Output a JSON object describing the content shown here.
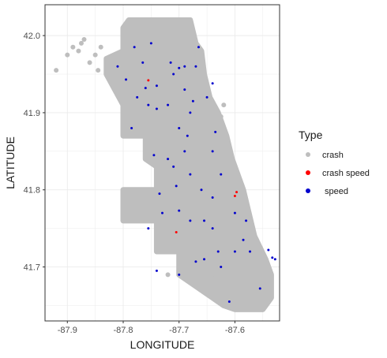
{
  "chart_data": {
    "type": "scatter",
    "xlabel": "LONGITUDE",
    "ylabel": "LATITUDE",
    "xlim": [
      -87.94,
      -87.52
    ],
    "ylim": [
      41.63,
      42.04
    ],
    "x_ticks": [
      "-87.9",
      "-87.8",
      "-87.7",
      "-87.6"
    ],
    "x_tick_values": [
      -87.9,
      -87.8,
      -87.7,
      -87.6
    ],
    "y_ticks": [
      "41.7",
      "41.8",
      "41.9",
      "42.0"
    ],
    "y_tick_values": [
      41.7,
      41.8,
      41.9,
      42.0
    ],
    "grid": true,
    "legend": {
      "title": "Type",
      "position": "right",
      "entries": [
        {
          "label": "crash",
          "color": "#bebebe"
        },
        {
          "label": "crash speed",
          "color": "#ff0000"
        },
        {
          "label": " speed",
          "color": "#0000cd"
        }
      ]
    },
    "crash_region": [
      [
        -87.79,
        42.02
      ],
      [
        -87.68,
        42.02
      ],
      [
        -87.67,
        41.99
      ],
      [
        -87.66,
        41.98
      ],
      [
        -87.655,
        41.95
      ],
      [
        -87.645,
        41.92
      ],
      [
        -87.63,
        41.9
      ],
      [
        -87.615,
        41.87
      ],
      [
        -87.605,
        41.84
      ],
      [
        -87.585,
        41.8
      ],
      [
        -87.575,
        41.77
      ],
      [
        -87.565,
        41.74
      ],
      [
        -87.545,
        41.71
      ],
      [
        -87.535,
        41.69
      ],
      [
        -87.535,
        41.66
      ],
      [
        -87.55,
        41.645
      ],
      [
        -87.6,
        41.645
      ],
      [
        -87.62,
        41.65
      ],
      [
        -87.64,
        41.66
      ],
      [
        -87.66,
        41.67
      ],
      [
        -87.69,
        41.685
      ],
      [
        -87.7,
        41.69
      ],
      [
        -87.7,
        41.72
      ],
      [
        -87.74,
        41.72
      ],
      [
        -87.74,
        41.76
      ],
      [
        -87.8,
        41.76
      ],
      [
        -87.8,
        41.8
      ],
      [
        -87.74,
        41.8
      ],
      [
        -87.74,
        41.83
      ],
      [
        -87.76,
        41.84
      ],
      [
        -87.76,
        41.87
      ],
      [
        -87.8,
        41.87
      ],
      [
        -87.8,
        41.91
      ],
      [
        -87.83,
        41.95
      ],
      [
        -87.83,
        41.97
      ],
      [
        -87.8,
        41.98
      ],
      [
        -87.8,
        42.01
      ]
    ],
    "crash_outliers": [
      [
        -87.92,
        41.955
      ],
      [
        -87.9,
        41.975
      ],
      [
        -87.89,
        41.985
      ],
      [
        -87.88,
        41.98
      ],
      [
        -87.875,
        41.99
      ],
      [
        -87.86,
        41.965
      ],
      [
        -87.85,
        41.975
      ],
      [
        -87.87,
        41.995
      ],
      [
        -87.845,
        41.955
      ],
      [
        -87.84,
        41.985
      ],
      [
        -87.62,
        41.91
      ],
      [
        -87.625,
        41.895
      ],
      [
        -87.57,
        41.68
      ],
      [
        -87.545,
        41.71
      ],
      [
        -87.55,
        41.7
      ],
      [
        -87.575,
        41.655
      ],
      [
        -87.56,
        41.66
      ],
      [
        -87.6,
        41.655
      ],
      [
        -87.64,
        41.685
      ],
      [
        -87.645,
        41.675
      ],
      [
        -87.7,
        41.695
      ],
      [
        -87.72,
        41.69
      ],
      [
        -87.56,
        41.69
      ],
      [
        -87.58,
        41.665
      ]
    ],
    "crash_speed_points": [
      [
        -87.755,
        41.942
      ],
      [
        -87.6,
        41.792
      ],
      [
        -87.597,
        41.797
      ],
      [
        -87.705,
        41.745
      ]
    ],
    "speed_points": [
      [
        -87.81,
        41.96
      ],
      [
        -87.78,
        41.985
      ],
      [
        -87.765,
        41.965
      ],
      [
        -87.75,
        41.99
      ],
      [
        -87.715,
        41.965
      ],
      [
        -87.69,
        41.96
      ],
      [
        -87.7,
        41.958
      ],
      [
        -87.67,
        41.96
      ],
      [
        -87.665,
        41.985
      ],
      [
        -87.76,
        41.932
      ],
      [
        -87.74,
        41.935
      ],
      [
        -87.795,
        41.943
      ],
      [
        -87.775,
        41.92
      ],
      [
        -87.785,
        41.88
      ],
      [
        -87.755,
        41.91
      ],
      [
        -87.71,
        41.95
      ],
      [
        -87.69,
        41.93
      ],
      [
        -87.72,
        41.91
      ],
      [
        -87.68,
        41.9
      ],
      [
        -87.65,
        41.92
      ],
      [
        -87.64,
        41.938
      ],
      [
        -87.7,
        41.88
      ],
      [
        -87.685,
        41.87
      ],
      [
        -87.72,
        41.84
      ],
      [
        -87.71,
        41.83
      ],
      [
        -87.69,
        41.85
      ],
      [
        -87.635,
        41.875
      ],
      [
        -87.64,
        41.85
      ],
      [
        -87.625,
        41.82
      ],
      [
        -87.68,
        41.82
      ],
      [
        -87.705,
        41.805
      ],
      [
        -87.66,
        41.8
      ],
      [
        -87.64,
        41.79
      ],
      [
        -87.735,
        41.795
      ],
      [
        -87.73,
        41.77
      ],
      [
        -87.7,
        41.773
      ],
      [
        -87.68,
        41.76
      ],
      [
        -87.655,
        41.76
      ],
      [
        -87.755,
        41.75
      ],
      [
        -87.64,
        41.75
      ],
      [
        -87.6,
        41.77
      ],
      [
        -87.58,
        41.76
      ],
      [
        -87.585,
        41.735
      ],
      [
        -87.573,
        41.72
      ],
      [
        -87.63,
        41.72
      ],
      [
        -87.625,
        41.7
      ],
      [
        -87.6,
        41.72
      ],
      [
        -87.54,
        41.722
      ],
      [
        -87.533,
        41.712
      ],
      [
        -87.528,
        41.71
      ],
      [
        -87.61,
        41.655
      ],
      [
        -87.555,
        41.672
      ],
      [
        -87.74,
        41.695
      ],
      [
        -87.7,
        41.69
      ],
      [
        -87.67,
        41.707
      ],
      [
        -87.655,
        41.71
      ],
      [
        -87.745,
        41.845
      ],
      [
        -87.74,
        41.905
      ],
      [
        -87.675,
        41.915
      ]
    ]
  }
}
